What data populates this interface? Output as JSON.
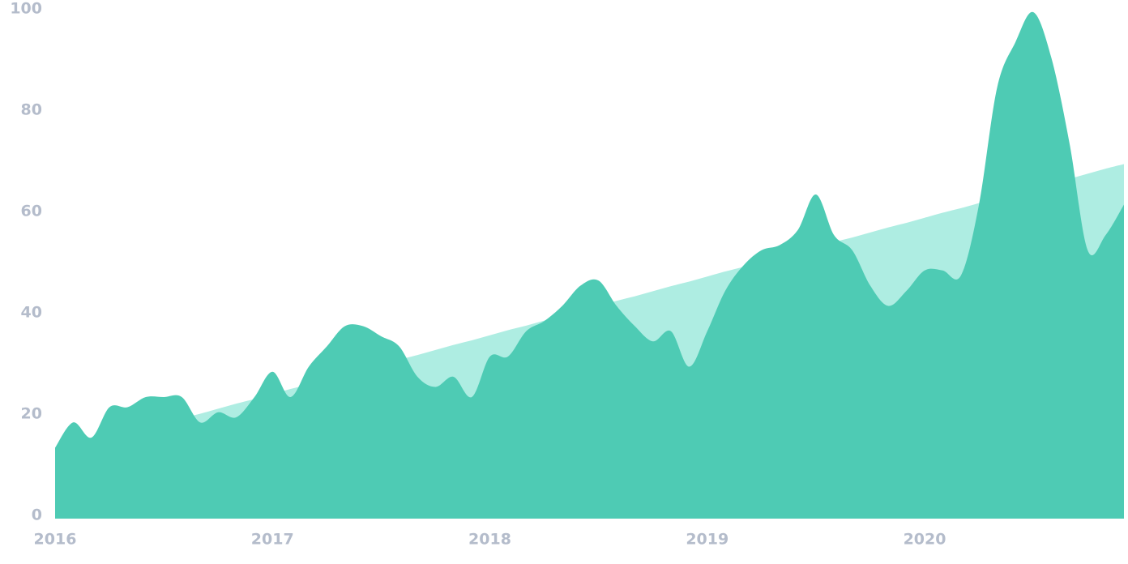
{
  "chart_data": {
    "type": "area",
    "x": [
      2016,
      2016.083,
      2016.167,
      2016.25,
      2016.333,
      2016.417,
      2016.5,
      2016.583,
      2016.667,
      2016.75,
      2016.833,
      2016.917,
      2017,
      2017.083,
      2017.167,
      2017.25,
      2017.333,
      2017.417,
      2017.5,
      2017.583,
      2017.667,
      2017.75,
      2017.833,
      2017.917,
      2018,
      2018.083,
      2018.167,
      2018.25,
      2018.333,
      2018.417,
      2018.5,
      2018.583,
      2018.667,
      2018.75,
      2018.833,
      2018.917,
      2019,
      2019.083,
      2019.167,
      2019.25,
      2019.333,
      2019.417,
      2019.5,
      2019.583,
      2019.667,
      2019.75,
      2019.833,
      2019.917,
      2020,
      2020.083,
      2020.167,
      2020.25,
      2020.333,
      2020.417,
      2020.5,
      2020.583,
      2020.667,
      2020.75,
      2020.833,
      2020.917
    ],
    "series": [
      {
        "color": "#aeede2",
        "values": [
          13.0,
          14.0,
          14.9,
          15.9,
          16.9,
          17.8,
          18.8,
          19.8,
          20.7,
          21.7,
          22.7,
          23.6,
          24.6,
          25.6,
          26.5,
          27.5,
          28.5,
          29.4,
          30.4,
          31.4,
          32.3,
          33.3,
          34.3,
          35.2,
          36.2,
          37.2,
          38.1,
          39.1,
          40.1,
          41.0,
          42.0,
          43.0,
          43.9,
          44.9,
          45.9,
          46.8,
          47.8,
          48.8,
          49.7,
          50.7,
          51.7,
          52.6,
          53.6,
          54.6,
          55.5,
          56.5,
          57.5,
          58.4,
          59.4,
          60.4,
          61.3,
          62.3,
          63.3,
          64.2,
          65.2,
          66.2,
          67.1,
          68.1,
          69.1,
          70.0
        ]
      },
      {
        "color": "#4ecbb4",
        "values": [
          14,
          19,
          16,
          22,
          22,
          24,
          24,
          24,
          19,
          21,
          20,
          24,
          29,
          24,
          30,
          34,
          38,
          38,
          36,
          34,
          28,
          26,
          28,
          24,
          32,
          32,
          37,
          39,
          42,
          46,
          47,
          42,
          38,
          35,
          37,
          30,
          37,
          45,
          50,
          53,
          54,
          57,
          64,
          56,
          53,
          46,
          42,
          45,
          49,
          49,
          48,
          62,
          85,
          94,
          100,
          91,
          74,
          53,
          56,
          62
        ]
      }
    ],
    "xlim": [
      2016,
      2020.917
    ],
    "xticks": [
      2016,
      2017,
      2018,
      2019,
      2020
    ],
    "ylim": [
      0,
      100
    ],
    "yticks": [
      0,
      20,
      40,
      60,
      80,
      100
    ]
  }
}
